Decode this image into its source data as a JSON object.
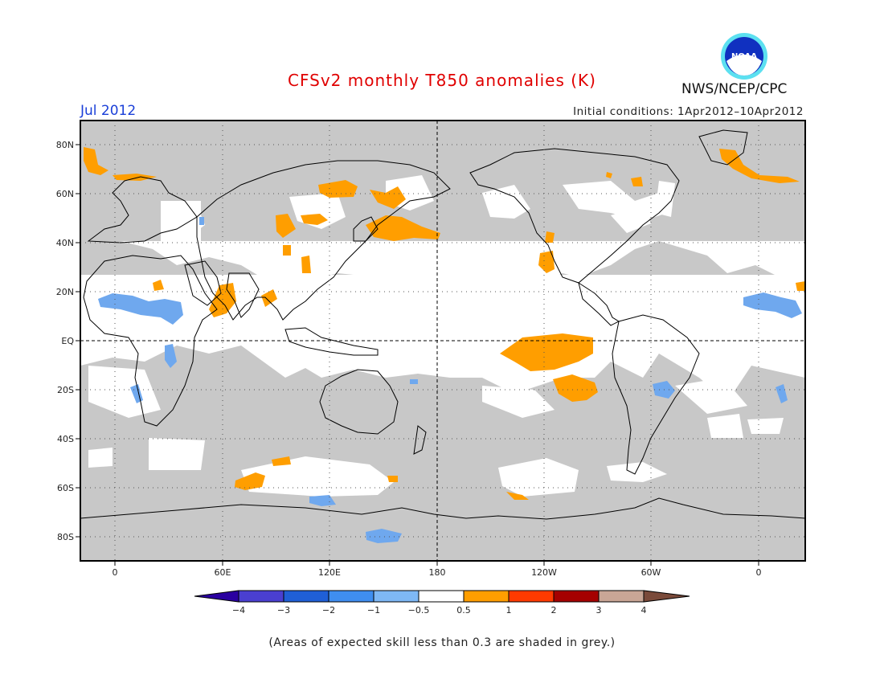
{
  "header": {
    "title": "CFSv2 monthly T850 anomalies (K)",
    "month": "Jul 2012",
    "initial_conditions": "Initial conditions: 1Apr2012–10Apr2012",
    "agency": "NWS/NCEP/CPC",
    "logo_text": "NOAA"
  },
  "map": {
    "lat_labels": [
      "80N",
      "60N",
      "40N",
      "20N",
      "EQ",
      "20S",
      "40S",
      "60S",
      "80S"
    ],
    "lon_labels": [
      "0",
      "60E",
      "120E",
      "180",
      "120W",
      "60W",
      "0"
    ]
  },
  "legend": {
    "labels": [
      "−4",
      "−3",
      "−2",
      "−1",
      "−0.5",
      "0.5",
      "1",
      "2",
      "3",
      "4"
    ],
    "colors": [
      "#2a00a0",
      "#4a3fd0",
      "#1f5fd6",
      "#3f8ef0",
      "#7eb8f5",
      "#ffffff",
      "#ff9e00",
      "#ff3a00",
      "#a50000",
      "#c9a696",
      "#7a4a3a"
    ]
  },
  "footnote": "(Areas of expected skill less than 0.3 are shaded in grey.)",
  "colors": {
    "title": "#e00000",
    "month": "#1a3fd8",
    "low_skill_grey": "#c8c8c8",
    "positive_orange": "#ff9e00",
    "negative_blue": "#6fa8ee"
  }
}
